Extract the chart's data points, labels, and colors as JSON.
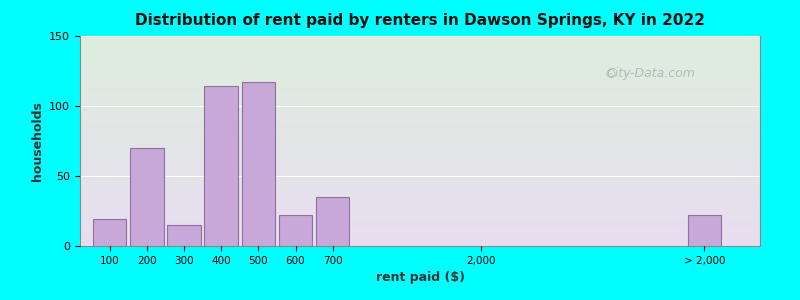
{
  "title": "Distribution of rent paid by renters in Dawson Springs, KY in 2022",
  "xlabel": "rent paid ($)",
  "ylabel": "households",
  "background_outer": "#00FFFF",
  "background_inner_top": "#ddeedd",
  "background_inner_bottom": "#e8ddf0",
  "bar_color": "#c8a8d8",
  "bar_edge_color": "#9070a0",
  "ylim": [
    0,
    150
  ],
  "yticks": [
    0,
    50,
    100,
    150
  ],
  "categories": [
    "100",
    "200",
    "300",
    "400",
    "500",
    "600",
    "700",
    "2,000",
    "> 2,000"
  ],
  "values": [
    19,
    70,
    15,
    114,
    117,
    22,
    35,
    0,
    22
  ],
  "bar_positions": [
    0,
    1,
    2,
    3,
    4,
    5,
    6,
    10,
    16
  ],
  "xlim": [
    -0.8,
    17.5
  ],
  "watermark": "City-Data.com"
}
